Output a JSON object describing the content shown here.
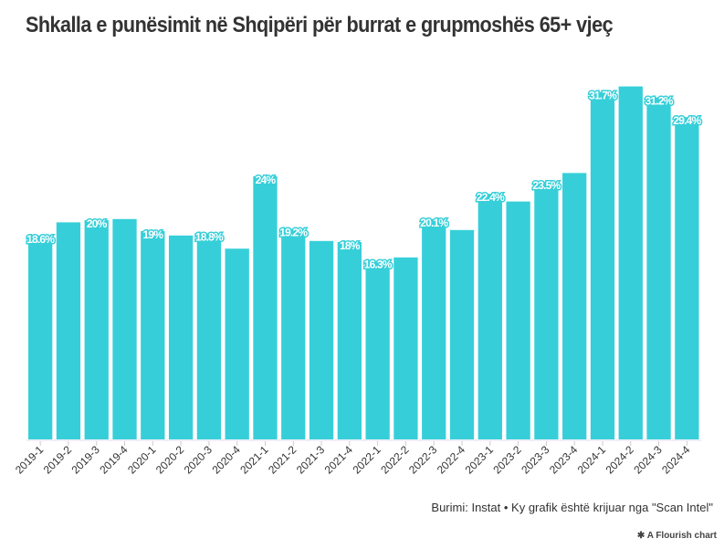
{
  "chart_data": {
    "type": "bar",
    "title": "Shkalla e punësimit në Shqipëri për burrat e grupmoshës 65+ vjeç",
    "categories": [
      "2019-1",
      "2019-2",
      "2019-3",
      "2019-4",
      "2020-1",
      "2020-2",
      "2020-3",
      "2020-4",
      "2021-1",
      "2021-2",
      "2021-3",
      "2021-4",
      "2022-1",
      "2022-2",
      "2022-3",
      "2022-4",
      "2023-1",
      "2023-2",
      "2023-3",
      "2023-4",
      "2024-1",
      "2024-2",
      "2024-3",
      "2024-4"
    ],
    "values": [
      18.6,
      19.8,
      20,
      20.1,
      19,
      18.6,
      18.8,
      17.4,
      24,
      19.2,
      18.1,
      18,
      16.3,
      16.6,
      20.1,
      19.1,
      22.4,
      21.7,
      23.5,
      24.3,
      31.7,
      32.2,
      31.2,
      29.4
    ],
    "data_labels": [
      "18.6%",
      "",
      "20%",
      "",
      "19%",
      "",
      "18.8%",
      "",
      "24%",
      "19.2%",
      "",
      "18%",
      "16.3%",
      "",
      "20.1%",
      "",
      "22.4%",
      "",
      "23.5%",
      "",
      "31.7%",
      "",
      "31.2%",
      "29.4%"
    ],
    "xlabel": "",
    "ylabel": "",
    "ylim": [
      0,
      35
    ],
    "grid": false,
    "color": "#36cfd9"
  },
  "source": "Burimi: Instat • Ky grafik është krijuar nga \"Scan Intel\"",
  "flourish": "A Flourish chart"
}
